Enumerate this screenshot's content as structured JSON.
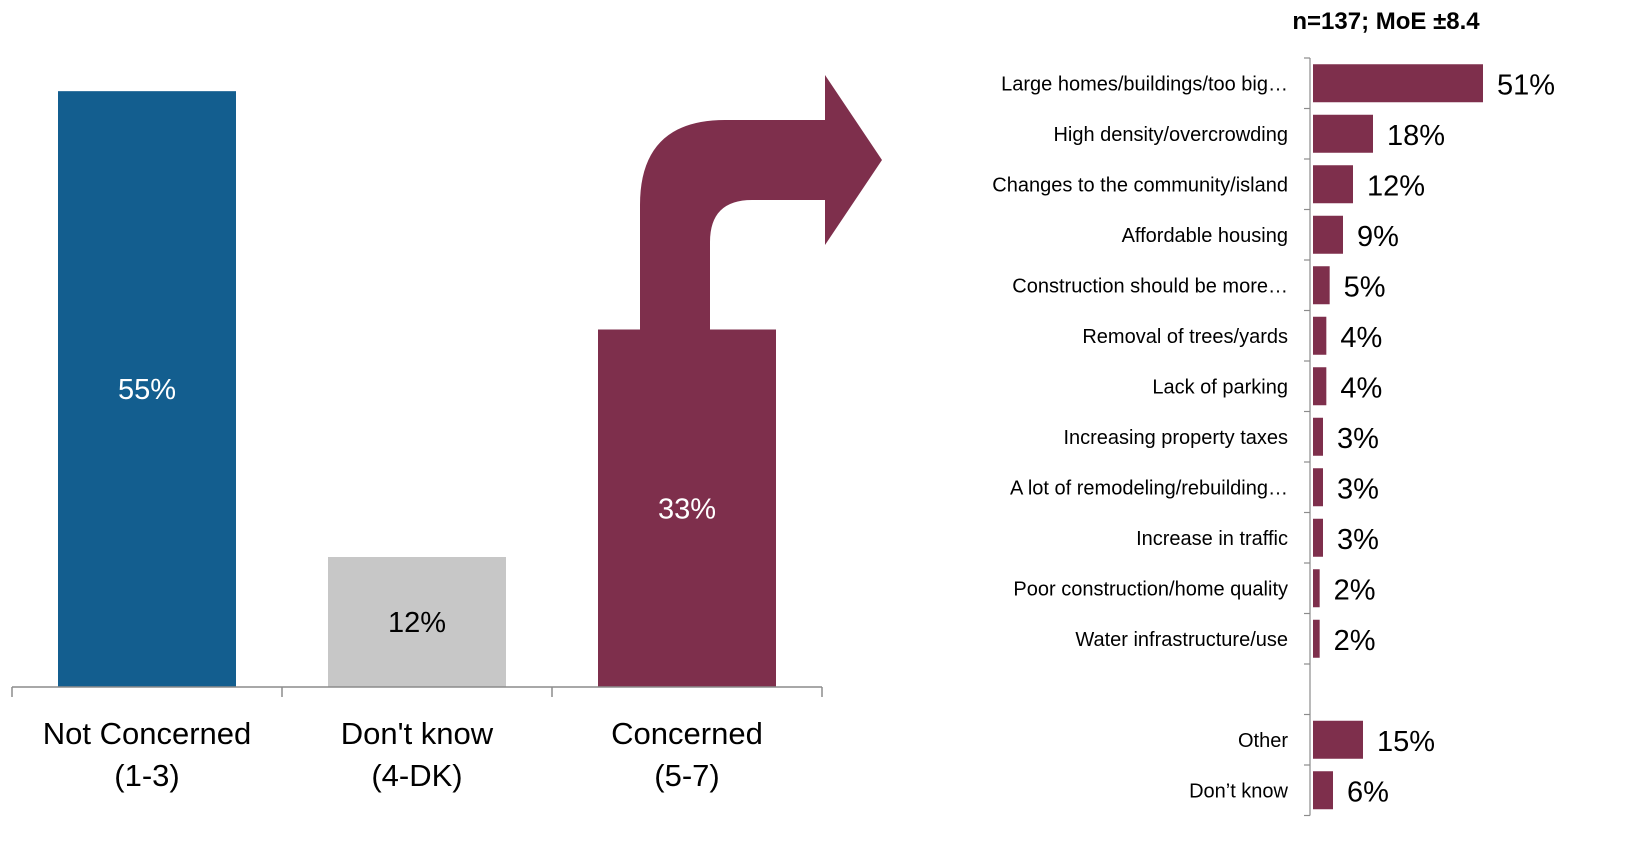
{
  "sample_note": "n=137; MoE ±8.4",
  "colors": {
    "not_concerned": "#135E8F",
    "dont_know": "#C7C7C7",
    "concerned": "#7E2F4C",
    "axis": "#8C8C8C"
  },
  "chart_data": [
    {
      "type": "bar",
      "categories": [
        [
          "Not Concerned",
          "(1-3)"
        ],
        [
          "Don't know",
          "(4-DK)"
        ],
        [
          "Concerned",
          "(5-7)"
        ]
      ],
      "values": [
        55,
        12,
        33
      ],
      "data_labels": [
        "55%",
        "12%",
        "33%"
      ],
      "ylim": [
        0,
        60
      ]
    },
    {
      "type": "bar",
      "orientation": "horizontal",
      "categories": [
        "Large homes/buildings/too big…",
        "High density/overcrowding",
        "Changes to the community/island",
        "Affordable housing",
        "Construction should be more…",
        "Removal of trees/yards",
        "Lack of parking",
        "Increasing property taxes",
        "A lot of remodeling/rebuilding…",
        "Increase in traffic",
        "Poor construction/home quality",
        "Water infrastructure/use",
        "",
        "Other",
        "Don’t know"
      ],
      "values": [
        51,
        18,
        12,
        9,
        5,
        4,
        4,
        3,
        3,
        3,
        2,
        2,
        null,
        15,
        6
      ],
      "data_labels": [
        "51%",
        "18%",
        "12%",
        "9%",
        "5%",
        "4%",
        "4%",
        "3%",
        "3%",
        "3%",
        "2%",
        "2%",
        "",
        "15%",
        "6%"
      ],
      "xlim": [
        0,
        55
      ]
    }
  ]
}
